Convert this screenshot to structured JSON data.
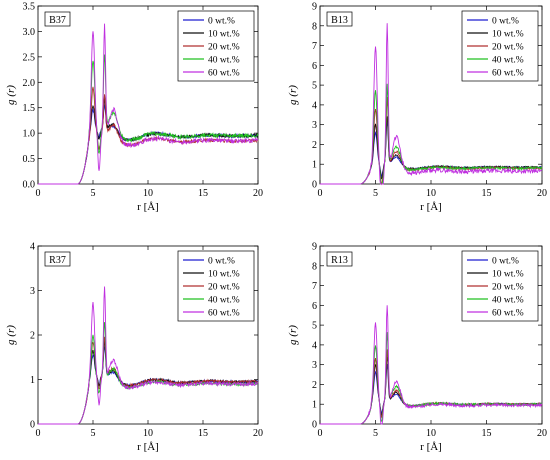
{
  "colors": {
    "0 wt.%": "#1f1fd0",
    "10 wt.%": "#111111",
    "20 wt.%": "#b03030",
    "40 wt.%": "#22c022",
    "60 wt.%": "#c030e0"
  },
  "chart_data": [
    {
      "type": "line",
      "panel_label": "B37",
      "xlabel": "r [Å]",
      "ylabel": "g (r)",
      "xlim": [
        0,
        20
      ],
      "ylim": [
        0,
        3.5
      ],
      "xticks": [
        "0",
        "5",
        "10",
        "15",
        "20"
      ],
      "yticks": [
        "0.0",
        "0.5",
        "1.0",
        "1.5",
        "2.0",
        "2.5",
        "3.0",
        "3.5"
      ],
      "legend_position": "top-right",
      "series": [
        {
          "name": "0 wt.%",
          "peaks": [
            1.45,
            1.55
          ],
          "tail": 0.95
        },
        {
          "name": "10 wt.%",
          "peaks": [
            1.55,
            1.65
          ],
          "tail": 0.95
        },
        {
          "name": "20 wt.%",
          "peaks": [
            1.9,
            1.75
          ],
          "tail": 0.85
        },
        {
          "name": "40 wt.%",
          "peaks": [
            2.45,
            2.55
          ],
          "tail": 0.95
        },
        {
          "name": "60 wt.%",
          "peaks": [
            3.0,
            3.1
          ],
          "tail": 0.85
        }
      ]
    },
    {
      "type": "line",
      "panel_label": "B13",
      "xlabel": "r [Å]",
      "ylabel": "g (r)",
      "xlim": [
        0,
        20
      ],
      "ylim": [
        0,
        9
      ],
      "xticks": [
        "0",
        "5",
        "10",
        "15",
        "20"
      ],
      "yticks": [
        "0",
        "1",
        "2",
        "3",
        "4",
        "5",
        "6",
        "7",
        "8",
        "9"
      ],
      "legend_position": "top-right",
      "series": [
        {
          "name": "0 wt.%",
          "peaks": [
            2.6,
            3.2
          ],
          "tail": 0.85
        },
        {
          "name": "10 wt.%",
          "peaks": [
            3.0,
            3.4
          ],
          "tail": 0.85
        },
        {
          "name": "20 wt.%",
          "peaks": [
            3.8,
            4.3
          ],
          "tail": 0.8
        },
        {
          "name": "40 wt.%",
          "peaks": [
            4.7,
            5.0
          ],
          "tail": 0.8
        },
        {
          "name": "60 wt.%",
          "peaks": [
            7.0,
            8.1
          ],
          "tail": 0.65
        }
      ]
    },
    {
      "type": "line",
      "panel_label": "R37",
      "xlabel": "r [Å]",
      "ylabel": "g (r)",
      "xlim": [
        0,
        20
      ],
      "ylim": [
        0,
        4
      ],
      "xticks": [
        "0",
        "5",
        "10",
        "15",
        "20"
      ],
      "yticks": [
        "0",
        "1",
        "2",
        "3",
        "4"
      ],
      "legend_position": "top-right",
      "series": [
        {
          "name": "0 wt.%",
          "peaks": [
            1.55,
            1.75
          ],
          "tail": 0.95
        },
        {
          "name": "10 wt.%",
          "peaks": [
            1.65,
            1.85
          ],
          "tail": 0.95
        },
        {
          "name": "20 wt.%",
          "peaks": [
            1.85,
            1.95
          ],
          "tail": 0.95
        },
        {
          "name": "40 wt.%",
          "peaks": [
            2.0,
            2.3
          ],
          "tail": 0.9
        },
        {
          "name": "60 wt.%",
          "peaks": [
            2.7,
            3.05
          ],
          "tail": 0.9
        }
      ]
    },
    {
      "type": "line",
      "panel_label": "R13",
      "xlabel": "r [Å]",
      "ylabel": "g (r)",
      "xlim": [
        0,
        20
      ],
      "ylim": [
        0,
        9
      ],
      "xticks": [
        "0",
        "5",
        "10",
        "15",
        "20"
      ],
      "yticks": [
        "0",
        "1",
        "2",
        "3",
        "4",
        "5",
        "6",
        "7",
        "8",
        "9"
      ],
      "legend_position": "top-right",
      "series": [
        {
          "name": "0 wt.%",
          "peaks": [
            2.6,
            3.0
          ],
          "tail": 1.0
        },
        {
          "name": "10 wt.%",
          "peaks": [
            3.0,
            3.4
          ],
          "tail": 1.0
        },
        {
          "name": "20 wt.%",
          "peaks": [
            3.3,
            3.7
          ],
          "tail": 1.0
        },
        {
          "name": "40 wt.%",
          "peaks": [
            4.0,
            4.6
          ],
          "tail": 1.0
        },
        {
          "name": "60 wt.%",
          "peaks": [
            5.1,
            6.0
          ],
          "tail": 0.95
        }
      ]
    }
  ]
}
